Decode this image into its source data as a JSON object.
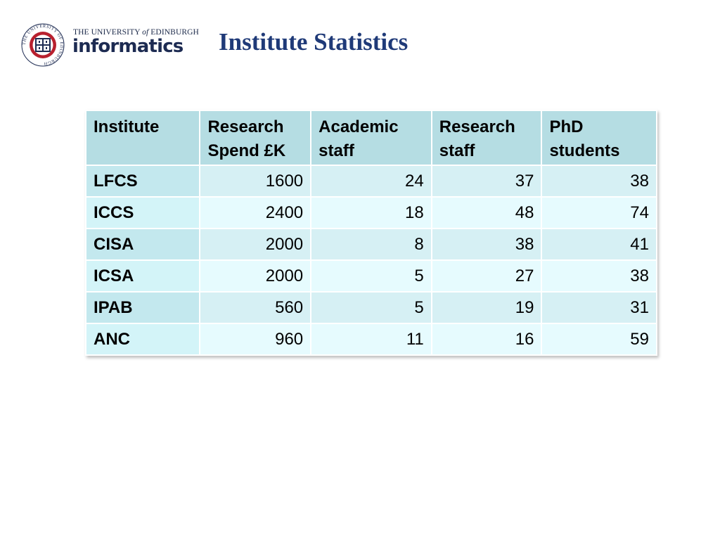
{
  "logo": {
    "icon": "university-seal-icon",
    "line_top_a": "THE UNIVERSITY ",
    "line_top_of": "of",
    "line_top_b": " EDINBURGH",
    "line_bottom": "informatics",
    "seal_text": "THE UNIVERSITY OF EDINBURGH"
  },
  "slide": {
    "title": "Institute Statistics"
  },
  "table": {
    "headers": [
      [
        "Institute"
      ],
      [
        "Research",
        "Spend £K"
      ],
      [
        "Academic",
        "staff"
      ],
      [
        "Research",
        "staff"
      ],
      [
        "PhD",
        "students"
      ]
    ],
    "rows": [
      {
        "institute": "LFCS",
        "spend": "1600",
        "academic": "24",
        "research": "37",
        "phd": "38"
      },
      {
        "institute": "ICCS",
        "spend": "2400",
        "academic": "18",
        "research": "48",
        "phd": "74"
      },
      {
        "institute": "CISA",
        "spend": "2000",
        "academic": "8",
        "research": "38",
        "phd": "41"
      },
      {
        "institute": "ICSA",
        "spend": "2000",
        "academic": "5",
        "research": "27",
        "phd": "38"
      },
      {
        "institute": "IPAB",
        "spend": "560",
        "academic": "5",
        "research": "19",
        "phd": "31"
      },
      {
        "institute": "ANC",
        "spend": "960",
        "academic": "11",
        "research": "16",
        "phd": "59"
      }
    ]
  },
  "colors": {
    "title": "#1f3a78",
    "header_bg": "#b5dde3",
    "row_a_bg": "#d6f0f4",
    "row_b_bg": "#e6fbfe",
    "seal_red": "#b8202e",
    "seal_navy": "#1d2b52"
  }
}
